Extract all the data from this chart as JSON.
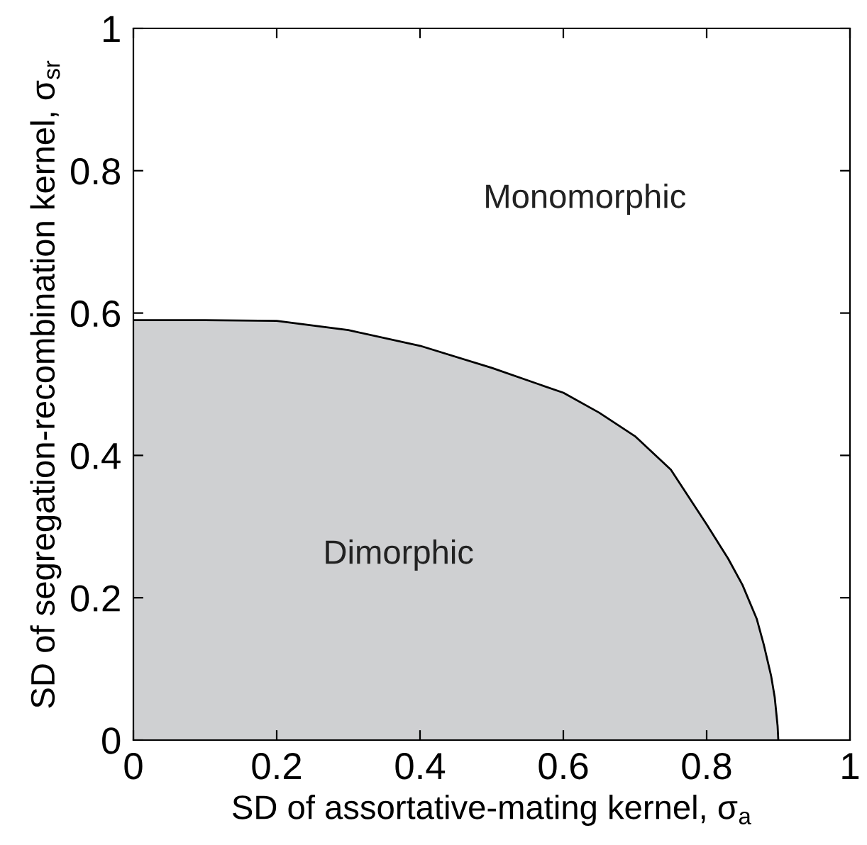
{
  "chart_data": {
    "type": "area",
    "xlabel": "SD of assortative-mating kernel, σ$_{a}$",
    "ylabel": "SD of segregation-recombination kernel, σ$_{sr}$",
    "series": [
      {
        "color": "#cfd0d2",
        "x": [
          0,
          0.1,
          0.2,
          0.3,
          0.4,
          0.5,
          0.6,
          0.65,
          0.7,
          0.75,
          0.8,
          0.83,
          0.85,
          0.87,
          0.88,
          0.89,
          0.895,
          0.899,
          0.9
        ],
        "values": [
          0.59,
          0.59,
          0.589,
          0.576,
          0.554,
          0.523,
          0.488,
          0.46,
          0.427,
          0.38,
          0.303,
          0.255,
          0.218,
          0.17,
          0.133,
          0.09,
          0.06,
          0.02,
          0
        ]
      }
    ],
    "annotations": [
      "Monomorphic",
      "Dimorphic"
    ],
    "xlim": [
      0,
      1
    ],
    "ylim": [
      0,
      1
    ],
    "xticks": [
      0,
      0.2,
      0.4,
      0.6,
      0.8,
      1
    ],
    "yticks": [
      0,
      0.2,
      0.4,
      0.6,
      0.8,
      1
    ],
    "grid": false,
    "legend": false
  }
}
